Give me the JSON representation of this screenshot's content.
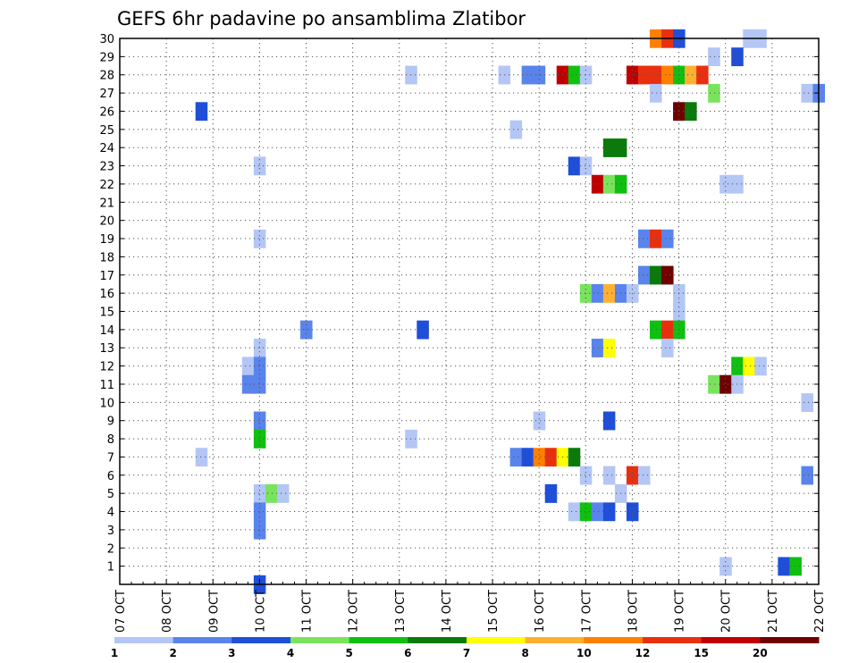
{
  "chart_data": {
    "type": "heatmap",
    "title": "GEFS 6hr padavine po ansamblima Zlatibor",
    "xlabel": "",
    "ylabel": "",
    "x_tick_labels": [
      "07 OCT",
      "08 OCT",
      "09 OCT",
      "10 OCT",
      "11 OCT",
      "12 OCT",
      "13 OCT",
      "14 OCT",
      "15 OCT",
      "16 OCT",
      "17 OCT",
      "18 OCT",
      "19 OCT",
      "20 OCT",
      "21 OCT",
      "22 OCT"
    ],
    "y_tick_labels": [
      "1",
      "2",
      "3",
      "4",
      "5",
      "6",
      "7",
      "8",
      "9",
      "10",
      "11",
      "12",
      "13",
      "14",
      "15",
      "16",
      "17",
      "18",
      "19",
      "20",
      "21",
      "22",
      "23",
      "24",
      "25",
      "26",
      "27",
      "28",
      "29",
      "30"
    ],
    "x_unit": "days since 07 OCT 00Z (6-hourly steps)",
    "y_range": [
      0,
      30
    ],
    "x_range": [
      0,
      15
    ],
    "grid": true,
    "legend": {
      "position": "bottom",
      "colors": [
        "#b3c6f5",
        "#5a84eb",
        "#1f4fd8",
        "#7ae35e",
        "#10c010",
        "#0a7a0a",
        "#ffff00",
        "#ffb030",
        "#ff8000",
        "#e83010",
        "#c00000",
        "#700000"
      ],
      "labels": [
        "1",
        "2",
        "3",
        "4",
        "5",
        "6",
        "7",
        "8",
        "10",
        "12",
        "15",
        "20"
      ]
    },
    "bin_thresholds_mm": [
      1,
      2,
      3,
      4,
      5,
      6,
      7,
      8,
      10,
      12,
      15,
      20
    ],
    "cells": [
      {
        "member": 30,
        "day": 11.5,
        "bin": 8
      },
      {
        "member": 30,
        "day": 11.75,
        "bin": 9
      },
      {
        "member": 30,
        "day": 12.0,
        "bin": 2
      },
      {
        "member": 30,
        "day": 13.5,
        "bin": 0
      },
      {
        "member": 30,
        "day": 13.75,
        "bin": 0
      },
      {
        "member": 29,
        "day": 12.75,
        "bin": 0
      },
      {
        "member": 29,
        "day": 13.25,
        "bin": 2
      },
      {
        "member": 28,
        "day": 6.25,
        "bin": 0
      },
      {
        "member": 28,
        "day": 8.25,
        "bin": 0
      },
      {
        "member": 28,
        "day": 8.75,
        "bin": 1
      },
      {
        "member": 28,
        "day": 9.0,
        "bin": 1
      },
      {
        "member": 28,
        "day": 9.5,
        "bin": 10
      },
      {
        "member": 28,
        "day": 9.75,
        "bin": 4
      },
      {
        "member": 28,
        "day": 10.0,
        "bin": 0
      },
      {
        "member": 28,
        "day": 11.0,
        "bin": 10
      },
      {
        "member": 28,
        "day": 11.25,
        "bin": 9
      },
      {
        "member": 28,
        "day": 11.5,
        "bin": 9
      },
      {
        "member": 28,
        "day": 11.75,
        "bin": 8
      },
      {
        "member": 28,
        "day": 12.0,
        "bin": 4
      },
      {
        "member": 28,
        "day": 12.25,
        "bin": 7
      },
      {
        "member": 28,
        "day": 12.5,
        "bin": 9
      },
      {
        "member": 27,
        "day": 11.5,
        "bin": 0
      },
      {
        "member": 27,
        "day": 12.75,
        "bin": 3
      },
      {
        "member": 27,
        "day": 14.75,
        "bin": 0
      },
      {
        "member": 27,
        "day": 15.0,
        "bin": 1
      },
      {
        "member": 26,
        "day": 1.75,
        "bin": 2
      },
      {
        "member": 26,
        "day": 12.0,
        "bin": 11
      },
      {
        "member": 26,
        "day": 12.25,
        "bin": 5
      },
      {
        "member": 25,
        "day": 8.5,
        "bin": 0
      },
      {
        "member": 24,
        "day": 10.5,
        "bin": 5
      },
      {
        "member": 24,
        "day": 10.75,
        "bin": 5
      },
      {
        "member": 23,
        "day": 3.0,
        "bin": 0
      },
      {
        "member": 23,
        "day": 9.75,
        "bin": 2
      },
      {
        "member": 23,
        "day": 10.0,
        "bin": 0
      },
      {
        "member": 22,
        "day": 10.25,
        "bin": 10
      },
      {
        "member": 22,
        "day": 10.5,
        "bin": 3
      },
      {
        "member": 22,
        "day": 10.75,
        "bin": 4
      },
      {
        "member": 22,
        "day": 13.0,
        "bin": 0
      },
      {
        "member": 22,
        "day": 13.25,
        "bin": 0
      },
      {
        "member": 19,
        "day": 3.0,
        "bin": 0
      },
      {
        "member": 19,
        "day": 11.25,
        "bin": 1
      },
      {
        "member": 19,
        "day": 11.5,
        "bin": 9
      },
      {
        "member": 19,
        "day": 11.75,
        "bin": 1
      },
      {
        "member": 17,
        "day": 11.25,
        "bin": 1
      },
      {
        "member": 17,
        "day": 11.5,
        "bin": 5
      },
      {
        "member": 17,
        "day": 11.75,
        "bin": 11
      },
      {
        "member": 16,
        "day": 10.0,
        "bin": 3
      },
      {
        "member": 16,
        "day": 10.25,
        "bin": 1
      },
      {
        "member": 16,
        "day": 10.5,
        "bin": 7
      },
      {
        "member": 16,
        "day": 10.75,
        "bin": 1
      },
      {
        "member": 16,
        "day": 11.0,
        "bin": 0
      },
      {
        "member": 16,
        "day": 12.0,
        "bin": 0
      },
      {
        "member": 15,
        "day": 12.0,
        "bin": 0
      },
      {
        "member": 14,
        "day": 4.0,
        "bin": 1
      },
      {
        "member": 14,
        "day": 6.5,
        "bin": 2
      },
      {
        "member": 14,
        "day": 11.5,
        "bin": 4
      },
      {
        "member": 14,
        "day": 11.75,
        "bin": 9
      },
      {
        "member": 14,
        "day": 12.0,
        "bin": 4
      },
      {
        "member": 13,
        "day": 3.0,
        "bin": 0
      },
      {
        "member": 13,
        "day": 10.25,
        "bin": 1
      },
      {
        "member": 13,
        "day": 10.5,
        "bin": 6
      },
      {
        "member": 13,
        "day": 11.75,
        "bin": 0
      },
      {
        "member": 12,
        "day": 2.75,
        "bin": 0
      },
      {
        "member": 12,
        "day": 3.0,
        "bin": 1
      },
      {
        "member": 12,
        "day": 13.25,
        "bin": 4
      },
      {
        "member": 12,
        "day": 13.5,
        "bin": 6
      },
      {
        "member": 12,
        "day": 13.75,
        "bin": 0
      },
      {
        "member": 11,
        "day": 2.75,
        "bin": 1
      },
      {
        "member": 11,
        "day": 3.0,
        "bin": 1
      },
      {
        "member": 11,
        "day": 12.75,
        "bin": 3
      },
      {
        "member": 11,
        "day": 13.0,
        "bin": 11
      },
      {
        "member": 11,
        "day": 13.25,
        "bin": 0
      },
      {
        "member": 10,
        "day": 14.75,
        "bin": 0
      },
      {
        "member": 9,
        "day": 3.0,
        "bin": 1
      },
      {
        "member": 9,
        "day": 9.0,
        "bin": 0
      },
      {
        "member": 9,
        "day": 10.5,
        "bin": 2
      },
      {
        "member": 8,
        "day": 3.0,
        "bin": 4
      },
      {
        "member": 8,
        "day": 6.25,
        "bin": 0
      },
      {
        "member": 7,
        "day": 1.75,
        "bin": 0
      },
      {
        "member": 7,
        "day": 8.5,
        "bin": 1
      },
      {
        "member": 7,
        "day": 8.75,
        "bin": 2
      },
      {
        "member": 7,
        "day": 9.0,
        "bin": 8
      },
      {
        "member": 7,
        "day": 9.25,
        "bin": 9
      },
      {
        "member": 7,
        "day": 9.5,
        "bin": 6
      },
      {
        "member": 7,
        "day": 9.75,
        "bin": 5
      },
      {
        "member": 6,
        "day": 10.0,
        "bin": 0
      },
      {
        "member": 6,
        "day": 10.5,
        "bin": 0
      },
      {
        "member": 6,
        "day": 11.0,
        "bin": 9
      },
      {
        "member": 6,
        "day": 11.25,
        "bin": 0
      },
      {
        "member": 6,
        "day": 14.75,
        "bin": 1
      },
      {
        "member": 5,
        "day": 3.0,
        "bin": 0
      },
      {
        "member": 5,
        "day": 3.25,
        "bin": 3
      },
      {
        "member": 5,
        "day": 3.5,
        "bin": 0
      },
      {
        "member": 5,
        "day": 9.25,
        "bin": 2
      },
      {
        "member": 5,
        "day": 10.75,
        "bin": 0
      },
      {
        "member": 4,
        "day": 3.0,
        "bin": 1
      },
      {
        "member": 4,
        "day": 9.75,
        "bin": 0
      },
      {
        "member": 4,
        "day": 10.0,
        "bin": 4
      },
      {
        "member": 4,
        "day": 10.25,
        "bin": 1
      },
      {
        "member": 4,
        "day": 10.5,
        "bin": 2
      },
      {
        "member": 4,
        "day": 11.0,
        "bin": 2
      },
      {
        "member": 3,
        "day": 3.0,
        "bin": 1
      },
      {
        "member": 1,
        "day": 13.0,
        "bin": 0
      },
      {
        "member": 1,
        "day": 14.25,
        "bin": 2
      },
      {
        "member": 1,
        "day": 14.5,
        "bin": 4
      },
      {
        "member": 0,
        "day": 3.0,
        "bin": 2
      }
    ]
  }
}
